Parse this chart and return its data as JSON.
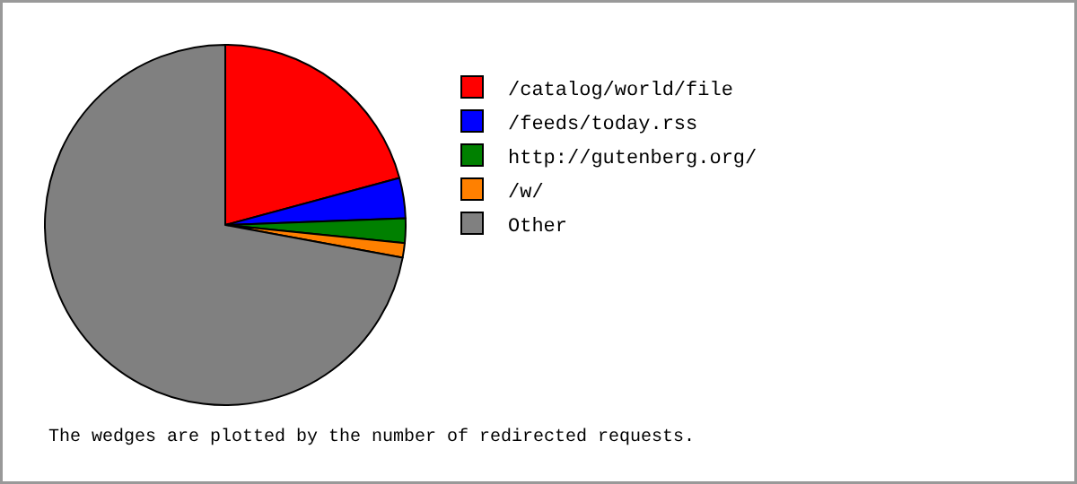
{
  "chart_data": {
    "type": "pie",
    "categories": [
      "/catalog/world/file",
      "/feeds/today.rss",
      "http://gutenberg.org/",
      "/w/",
      "Other"
    ],
    "values": [
      20.8,
      3.6,
      2.2,
      1.3,
      72.1
    ],
    "colors": [
      "#ff0000",
      "#0000ff",
      "#008000",
      "#ff8000",
      "#808080"
    ],
    "legend": "right",
    "annotations": [
      "The wedges are plotted by the number of redirected requests."
    ]
  }
}
